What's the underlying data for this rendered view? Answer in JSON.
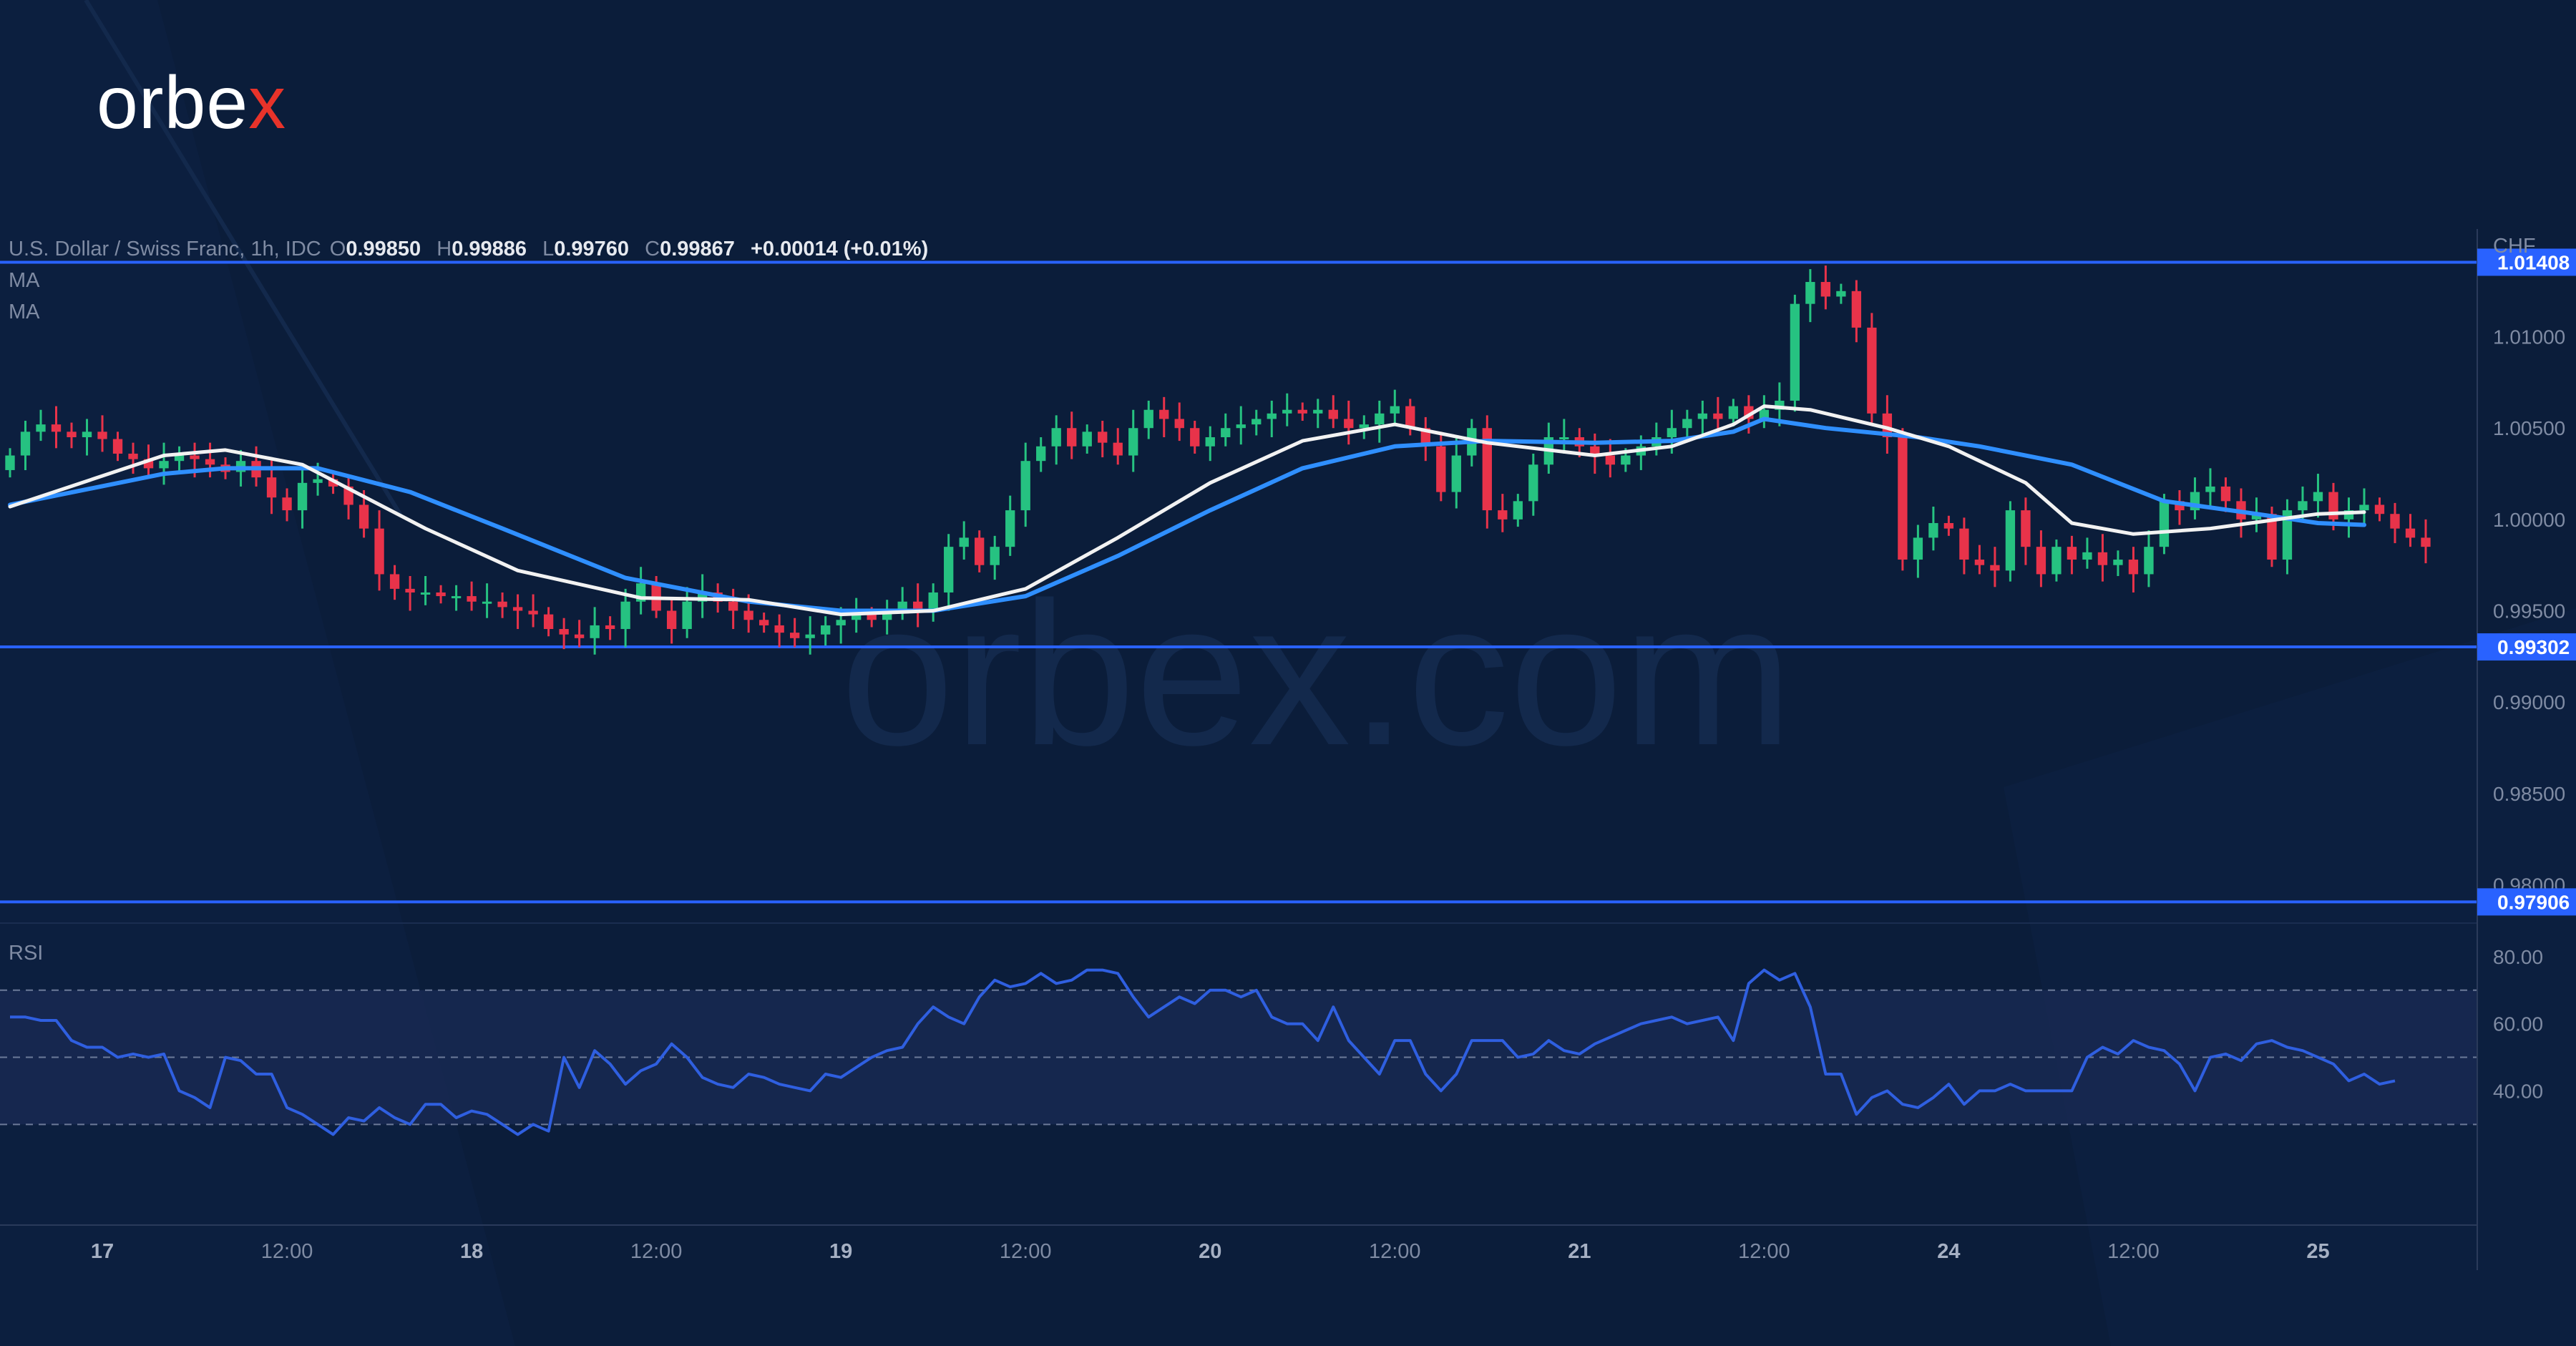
{
  "brand": {
    "logo_text_main": "orbe",
    "logo_text_x": "x"
  },
  "watermark": "orbex.com",
  "legend": {
    "symbol": "U.S. Dollar / Swiss Franc, 1h, IDC",
    "o_label": "O",
    "o_value": "0.99850",
    "h_label": "H",
    "h_value": "0.99886",
    "l_label": "L",
    "l_value": "0.99760",
    "c_label": "C",
    "c_value": "0.99867",
    "change": "+0.00014 (+0.01%)",
    "ma1": "MA",
    "ma2": "MA"
  },
  "price_unit": "CHF",
  "rsi_title": "RSI",
  "colors": {
    "background": "#0b1d3a",
    "bull": "#26c281",
    "bear": "#e8334a",
    "ma_fast": "#f2f2f2",
    "ma_slow": "#2f8fff",
    "level_line": "#2962ff",
    "rsi_line": "#2f5fe0",
    "grid_text": "#7f8ba3"
  },
  "chart_data": [
    {
      "type": "candlestick",
      "title": "U.S. Dollar / Swiss Franc, 1h, IDC",
      "ylim": [
        0.9779,
        1.0159
      ],
      "ylabel": "CHF",
      "y_ticks": [
        "1.01000",
        "1.00500",
        "1.00000",
        "0.99500",
        "0.99000",
        "0.98500",
        "0.98000"
      ],
      "y_tick_values": [
        1.01,
        1.005,
        1.0,
        0.995,
        0.99,
        0.985,
        0.98
      ],
      "x_ticks": [
        {
          "label": "17",
          "bar": 6
        },
        {
          "label": "12:00",
          "bar": 18
        },
        {
          "label": "18",
          "bar": 30
        },
        {
          "label": "12:00",
          "bar": 42
        },
        {
          "label": "19",
          "bar": 54
        },
        {
          "label": "12:00",
          "bar": 66
        },
        {
          "label": "20",
          "bar": 78
        },
        {
          "label": "12:00",
          "bar": 90
        },
        {
          "label": "21",
          "bar": 102
        },
        {
          "label": "12:00",
          "bar": 114
        },
        {
          "label": "24",
          "bar": 126
        },
        {
          "label": "12:00",
          "bar": 138
        },
        {
          "label": "25",
          "bar": 150
        }
      ],
      "levels": [
        {
          "value": 1.01408,
          "label": "1.01408"
        },
        {
          "value": 0.99302,
          "label": "0.99302"
        },
        {
          "value": 0.97906,
          "label": "0.97906"
        }
      ],
      "closes": [
        1.0035,
        1.0048,
        1.0052,
        1.0048,
        1.0045,
        1.0048,
        1.0044,
        1.0036,
        1.0033,
        1.0028,
        1.0032,
        1.0035,
        1.0033,
        1.003,
        1.0026,
        1.0032,
        1.0023,
        1.0012,
        1.0005,
        1.002,
        1.0022,
        1.0018,
        1.0008,
        0.9995,
        0.997,
        0.9962,
        0.996,
        0.996,
        0.9958,
        0.9958,
        0.9955,
        0.9955,
        0.9952,
        0.995,
        0.9948,
        0.994,
        0.9937,
        0.9935,
        0.9942,
        0.994,
        0.9955,
        0.9965,
        0.995,
        0.994,
        0.9955,
        0.996,
        0.9955,
        0.995,
        0.9945,
        0.9942,
        0.9938,
        0.9935,
        0.9937,
        0.9942,
        0.9945,
        0.9948,
        0.9945,
        0.995,
        0.9955,
        0.995,
        0.996,
        0.9985,
        0.999,
        0.9975,
        0.9985,
        1.0005,
        1.0032,
        1.004,
        1.005,
        1.004,
        1.0048,
        1.0042,
        1.0035,
        1.005,
        1.006,
        1.0055,
        1.005,
        1.004,
        1.0045,
        1.005,
        1.0052,
        1.0055,
        1.0058,
        1.006,
        1.0058,
        1.006,
        1.0055,
        1.005,
        1.0052,
        1.0058,
        1.0062,
        1.005,
        1.004,
        1.0015,
        1.0035,
        1.005,
        1.0005,
        1.0,
        1.001,
        1.003,
        1.0045,
        1.0045,
        1.004,
        1.0035,
        1.003,
        1.0035,
        1.004,
        1.0045,
        1.005,
        1.0055,
        1.0058,
        1.0055,
        1.0062,
        1.0055,
        1.006,
        1.0065,
        1.0118,
        1.013,
        1.0122,
        1.0125,
        1.0105,
        1.0058,
        1.0045,
        0.9978,
        0.999,
        0.9998,
        0.9995,
        0.9978,
        0.9975,
        0.9972,
        1.0005,
        0.9985,
        0.997,
        0.9985,
        0.9978,
        0.9982,
        0.9975,
        0.9978,
        0.997,
        0.9985,
        1.001,
        1.0005,
        1.0015,
        1.0018,
        1.001,
        1.0,
        1.0003,
        0.9978,
        1.0005,
        1.001,
        1.0015,
        1.0,
        1.0005,
        1.0008,
        1.0003,
        0.9995,
        0.999,
        0.9985
      ],
      "ma_fast": {
        "x": [
          0,
          10,
          14,
          19,
          27,
          33,
          41,
          48,
          54,
          60,
          66,
          72,
          78,
          84,
          90,
          96,
          103,
          108,
          112,
          114,
          117,
          122,
          126,
          131,
          134,
          138,
          143,
          150,
          153
        ],
        "y": [
          1.0007,
          1.0035,
          1.0038,
          1.003,
          0.9995,
          0.9972,
          0.9957,
          0.9956,
          0.9948,
          0.995,
          0.9962,
          0.999,
          1.002,
          1.0043,
          1.0052,
          1.0042,
          1.0035,
          1.004,
          1.0052,
          1.0062,
          1.006,
          1.005,
          1.004,
          1.002,
          0.9998,
          0.9992,
          0.9995,
          1.0003,
          1.0004
        ]
      },
      "ma_slow": {
        "x": [
          0,
          10,
          14,
          20,
          26,
          32,
          40,
          48,
          54,
          60,
          66,
          72,
          78,
          84,
          90,
          96,
          103,
          108,
          112,
          114,
          118,
          124,
          128,
          134,
          140,
          146,
          150,
          153
        ],
        "y": [
          1.0008,
          1.0025,
          1.0028,
          1.0028,
          1.0015,
          0.9995,
          0.9968,
          0.9955,
          0.995,
          0.995,
          0.9958,
          0.998,
          1.0005,
          1.0028,
          1.004,
          1.0043,
          1.0042,
          1.0043,
          1.0048,
          1.0055,
          1.005,
          1.0045,
          1.004,
          1.003,
          1.001,
          1.0003,
          0.9998,
          0.9997
        ]
      }
    },
    {
      "type": "line",
      "title": "RSI",
      "ylim": [
        0,
        90
      ],
      "y_ticks": [
        "80.00",
        "60.00",
        "40.00"
      ],
      "y_tick_values": [
        80,
        60,
        40
      ],
      "bands": [
        70,
        50,
        30
      ],
      "values": [
        62,
        62,
        61,
        61,
        55,
        53,
        53,
        50,
        51,
        50,
        51,
        40,
        38,
        35,
        50,
        49,
        45,
        45,
        35,
        33,
        30,
        27,
        32,
        31,
        35,
        32,
        30,
        36,
        36,
        32,
        34,
        33,
        30,
        27,
        30,
        28,
        50,
        41,
        52,
        48,
        42,
        46,
        48,
        54,
        50,
        44,
        42,
        41,
        45,
        44,
        42,
        41,
        40,
        45,
        44,
        47,
        50,
        52,
        53,
        60,
        65,
        62,
        60,
        68,
        73,
        71,
        72,
        75,
        72,
        73,
        76,
        76,
        75,
        68,
        62,
        65,
        68,
        66,
        70,
        70,
        68,
        70,
        62,
        60,
        60,
        55,
        65,
        55,
        50,
        45,
        55,
        55,
        45,
        40,
        45,
        55,
        55,
        55,
        50,
        51,
        55,
        52,
        51,
        54,
        56,
        58,
        60,
        61,
        62,
        60,
        61,
        62,
        55,
        72,
        76,
        73,
        75,
        65,
        45,
        45,
        33,
        38,
        40,
        36,
        35,
        38,
        42,
        36,
        40,
        40,
        42,
        40,
        40,
        40,
        40,
        50,
        53,
        51,
        55,
        53,
        52,
        48,
        40,
        50,
        51,
        49,
        54,
        55,
        53,
        52,
        50,
        48,
        43,
        45,
        42,
        43
      ],
      "min": 27,
      "max": 76
    }
  ]
}
